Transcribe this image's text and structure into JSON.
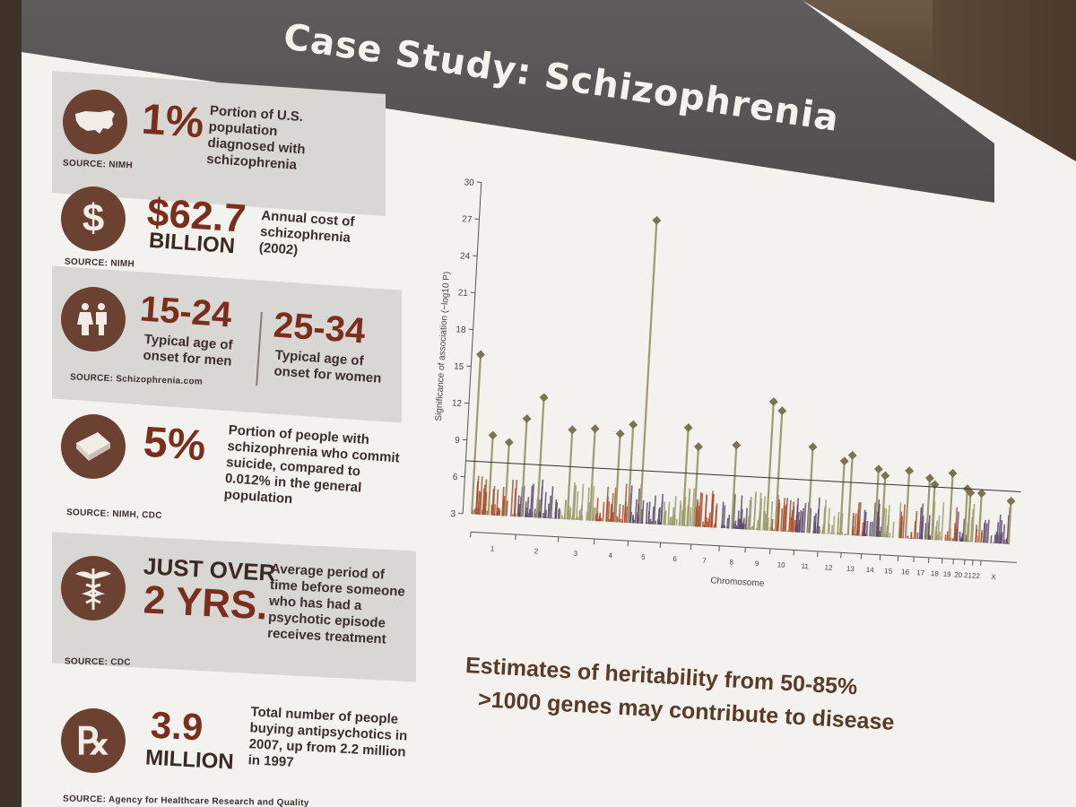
{
  "slide": {
    "title": "Case Study: Schizophrenia"
  },
  "facts": [
    {
      "icon": "usa-map-icon",
      "big": "1%",
      "text": "Portion of U.S. population diagnosed with schizophrenia",
      "source": "SOURCE: NIMH"
    },
    {
      "icon": "dollar-icon",
      "big": "$62.7",
      "big2": "BILLION",
      "text": "Annual cost of schizophrenia (2002)",
      "source": "SOURCE: NIMH"
    },
    {
      "icon": "people-icon",
      "big": "15-24",
      "text": "Typical age of onset for men",
      "big_b": "25-34",
      "text_b": "Typical age of onset for women",
      "source": "SOURCE: Schizophrenia.com"
    },
    {
      "icon": "coffin-icon",
      "big": "5%",
      "text": "Portion of people with schizophrenia who commit suicide, compared to 0.012% in the general population",
      "source": "SOURCE: NIMH, CDC"
    },
    {
      "icon": "caduceus-icon",
      "big": "JUST OVER",
      "big2": "2 YRS.",
      "text": "Average period of time before someone who has had a psychotic episode receives treatment",
      "source": "SOURCE: CDC"
    },
    {
      "icon": "rx-icon",
      "big": "3.9",
      "big2": "MILLION",
      "text": "Total number of people buying antipsychotics in 2007, up from 2.2 million in 1997",
      "source": "SOURCE: Agency for Healthcare Research and Quality"
    }
  ],
  "footer": {
    "line1": "Estimates of heritability from 50-85%",
    "line2": ">1000 genes may contribute to disease"
  },
  "chart_data": {
    "type": "scatter",
    "title": "",
    "xlabel": "Chromosome",
    "ylabel": "Significance of association (−log10 P)",
    "ylim": [
      3,
      30
    ],
    "yticks": [
      3,
      6,
      9,
      12,
      15,
      18,
      21,
      24,
      27,
      30
    ],
    "categories": [
      "1",
      "2",
      "3",
      "4",
      "5",
      "6",
      "7",
      "8",
      "9",
      "10",
      "11",
      "12",
      "13",
      "14",
      "15",
      "16",
      "17",
      "18",
      "19",
      "20",
      "21",
      "22",
      "X"
    ],
    "significance_threshold": 7.3,
    "colors": [
      "#a8502f",
      "#5d4a68",
      "#9e9c6e"
    ],
    "peaks": [
      {
        "chr": "1",
        "value": 16.0
      },
      {
        "chr": "1",
        "value": 9.5
      },
      {
        "chr": "1",
        "value": 9.0
      },
      {
        "chr": "2",
        "value": 11.0
      },
      {
        "chr": "2",
        "value": 12.8
      },
      {
        "chr": "3",
        "value": 10.5
      },
      {
        "chr": "3",
        "value": 10.3
      },
      {
        "chr": "4",
        "value": 10.2
      },
      {
        "chr": "4",
        "value": 11.0
      },
      {
        "chr": "5",
        "value": 27.7
      },
      {
        "chr": "6",
        "value": 11.0
      },
      {
        "chr": "7",
        "value": 9.5
      },
      {
        "chr": "8",
        "value": 9.8
      },
      {
        "chr": "9",
        "value": 13.5
      },
      {
        "chr": "10",
        "value": 12.8
      },
      {
        "chr": "11",
        "value": 10.0
      },
      {
        "chr": "12",
        "value": 9.0
      },
      {
        "chr": "13",
        "value": 9.5
      },
      {
        "chr": "14",
        "value": 8.5
      },
      {
        "chr": "15",
        "value": 8.0
      },
      {
        "chr": "16",
        "value": 8.5
      },
      {
        "chr": "17",
        "value": 8.0
      },
      {
        "chr": "18",
        "value": 7.5
      },
      {
        "chr": "19",
        "value": 8.5
      },
      {
        "chr": "20",
        "value": 7.3
      },
      {
        "chr": "21",
        "value": 7.0
      },
      {
        "chr": "22",
        "value": 7.0
      },
      {
        "chr": "X",
        "value": 6.5
      }
    ]
  }
}
